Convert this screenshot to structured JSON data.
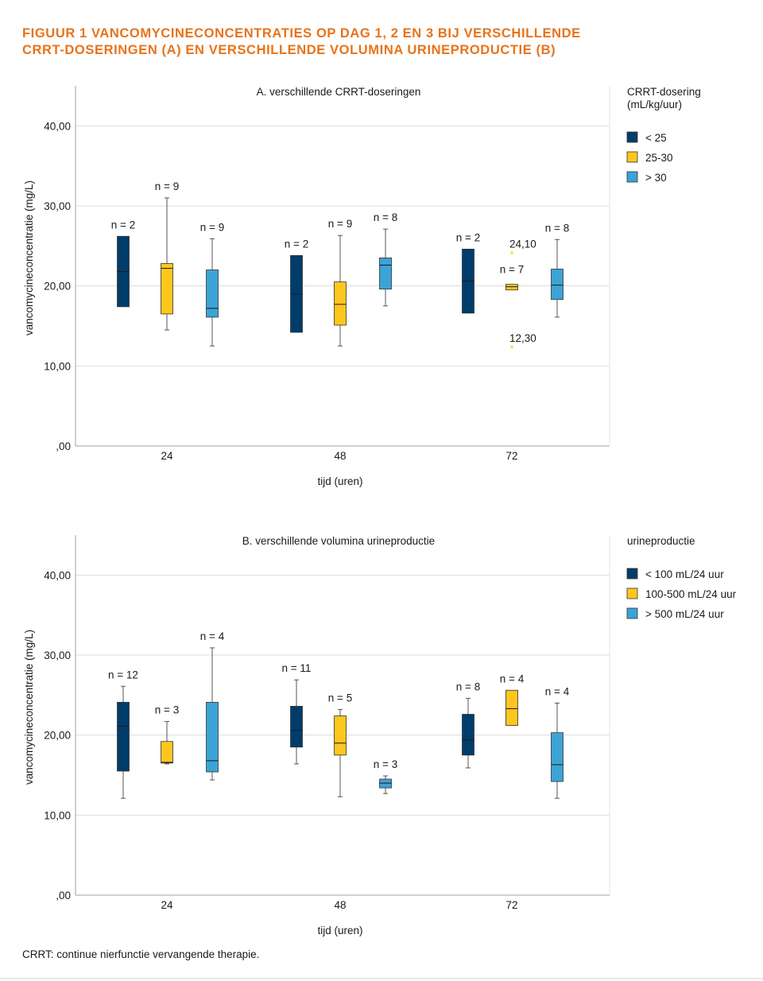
{
  "figure": {
    "title_line1": "FIGUUR 1  VANCOMYCINECONCENTRATIES OP DAG 1, 2 EN 3 BIJ VERSCHILLENDE",
    "title_line2": "CRRT-DOSERINGEN (A) EN VERSCHILLENDE VOLUMINA URINEPRODUCTIE (B)",
    "footnote": "CRRT: continue nierfunctie vervangende therapie."
  },
  "colors": {
    "group1": "#003d6b",
    "group2": "#ffc61e",
    "group3": "#3ca3d6",
    "outlier": "#ffc61e",
    "title": "#e8731a"
  },
  "chart_data": [
    {
      "type": "boxplot",
      "title": "A. verschillende CRRT-doseringen",
      "xlabel": "tijd (uren)",
      "ylabel": "vancomycineconcentratie (mg/L)",
      "ylim": [
        0,
        45
      ],
      "yticks": [
        0,
        10,
        20,
        30,
        40
      ],
      "yticklabels": [
        ",00",
        "10,00",
        "20,00",
        "30,00",
        "40,00"
      ],
      "grid": true,
      "legend_position": "right",
      "legend_title": "CRRT-dosering\n(mL/kg/uur)",
      "categories": [
        "24",
        "48",
        "72"
      ],
      "series": [
        {
          "name": "< 25",
          "color": "#003d6b",
          "boxes": [
            {
              "n": "n = 2",
              "min": 17.4,
              "q1": 17.4,
              "median": 21.8,
              "q3": 26.2,
              "max": 26.2
            },
            {
              "n": "n = 2",
              "min": 14.2,
              "q1": 14.2,
              "median": 19.0,
              "q3": 23.8,
              "max": 23.8
            },
            {
              "n": "n = 2",
              "min": 16.6,
              "q1": 16.6,
              "median": 20.6,
              "q3": 24.6,
              "max": 24.6
            }
          ]
        },
        {
          "name": "25-30",
          "color": "#ffc61e",
          "boxes": [
            {
              "n": "n = 9",
              "min": 14.5,
              "q1": 16.5,
              "median": 22.2,
              "q3": 22.8,
              "max": 31.0
            },
            {
              "n": "n = 9",
              "min": 12.5,
              "q1": 15.1,
              "median": 17.7,
              "q3": 20.5,
              "max": 26.3
            },
            {
              "n": "n = 7",
              "min": 19.5,
              "q1": 19.5,
              "median": 19.9,
              "q3": 20.2,
              "max": 20.2,
              "outliers": [
                {
                  "value": 24.1,
                  "label": "24,10"
                },
                {
                  "value": 12.3,
                  "label": "12,30"
                }
              ]
            }
          ]
        },
        {
          "name": "> 30",
          "color": "#3ca3d6",
          "boxes": [
            {
              "n": "n = 9",
              "min": 12.5,
              "q1": 16.1,
              "median": 17.2,
              "q3": 22.0,
              "max": 25.9
            },
            {
              "n": "n = 8",
              "min": 17.5,
              "q1": 19.6,
              "median": 22.6,
              "q3": 23.5,
              "max": 27.1
            },
            {
              "n": "n = 8",
              "min": 16.1,
              "q1": 18.3,
              "median": 20.1,
              "q3": 22.1,
              "max": 25.8
            }
          ]
        }
      ]
    },
    {
      "type": "boxplot",
      "title": "B. verschillende volumina urineproductie",
      "xlabel": "tijd (uren)",
      "ylabel": "vancomycineconcentratie (mg/L)",
      "ylim": [
        0,
        45
      ],
      "yticks": [
        0,
        10,
        20,
        30,
        40
      ],
      "yticklabels": [
        ",00",
        "10,00",
        "20,00",
        "30,00",
        "40,00"
      ],
      "grid": true,
      "legend_position": "right",
      "legend_title": "urineproductie",
      "categories": [
        "24",
        "48",
        "72"
      ],
      "series": [
        {
          "name": "< 100 mL/24 uur",
          "color": "#003d6b",
          "boxes": [
            {
              "n": "n = 12",
              "min": 12.1,
              "q1": 15.5,
              "median": 21.1,
              "q3": 24.1,
              "max": 26.1
            },
            {
              "n": "n = 11",
              "min": 16.4,
              "q1": 18.5,
              "median": 20.6,
              "q3": 23.6,
              "max": 26.9
            },
            {
              "n": "n = 8",
              "min": 15.9,
              "q1": 17.5,
              "median": 19.4,
              "q3": 22.6,
              "max": 24.6
            }
          ]
        },
        {
          "name": "100-500 mL/24 uur",
          "color": "#ffc61e",
          "boxes": [
            {
              "n": "n = 3",
              "min": 16.4,
              "q1": 16.5,
              "median": 16.6,
              "q3": 19.2,
              "max": 21.7
            },
            {
              "n": "n = 5",
              "min": 12.3,
              "q1": 17.5,
              "median": 19.0,
              "q3": 22.4,
              "max": 23.2
            },
            {
              "n": "n = 4",
              "min": 21.2,
              "q1": 21.2,
              "median": 23.3,
              "q3": 25.6,
              "max": 25.6
            }
          ]
        },
        {
          "name": "> 500 mL/24 uur",
          "color": "#3ca3d6",
          "boxes": [
            {
              "n": "n = 4",
              "min": 14.4,
              "q1": 15.4,
              "median": 16.8,
              "q3": 24.1,
              "max": 30.9
            },
            {
              "n": "n = 3",
              "min": 12.7,
              "q1": 13.4,
              "median": 14.0,
              "q3": 14.5,
              "max": 14.9
            },
            {
              "n": "n = 4",
              "min": 12.1,
              "q1": 14.2,
              "median": 16.3,
              "q3": 20.3,
              "max": 24.0
            }
          ]
        }
      ]
    }
  ]
}
